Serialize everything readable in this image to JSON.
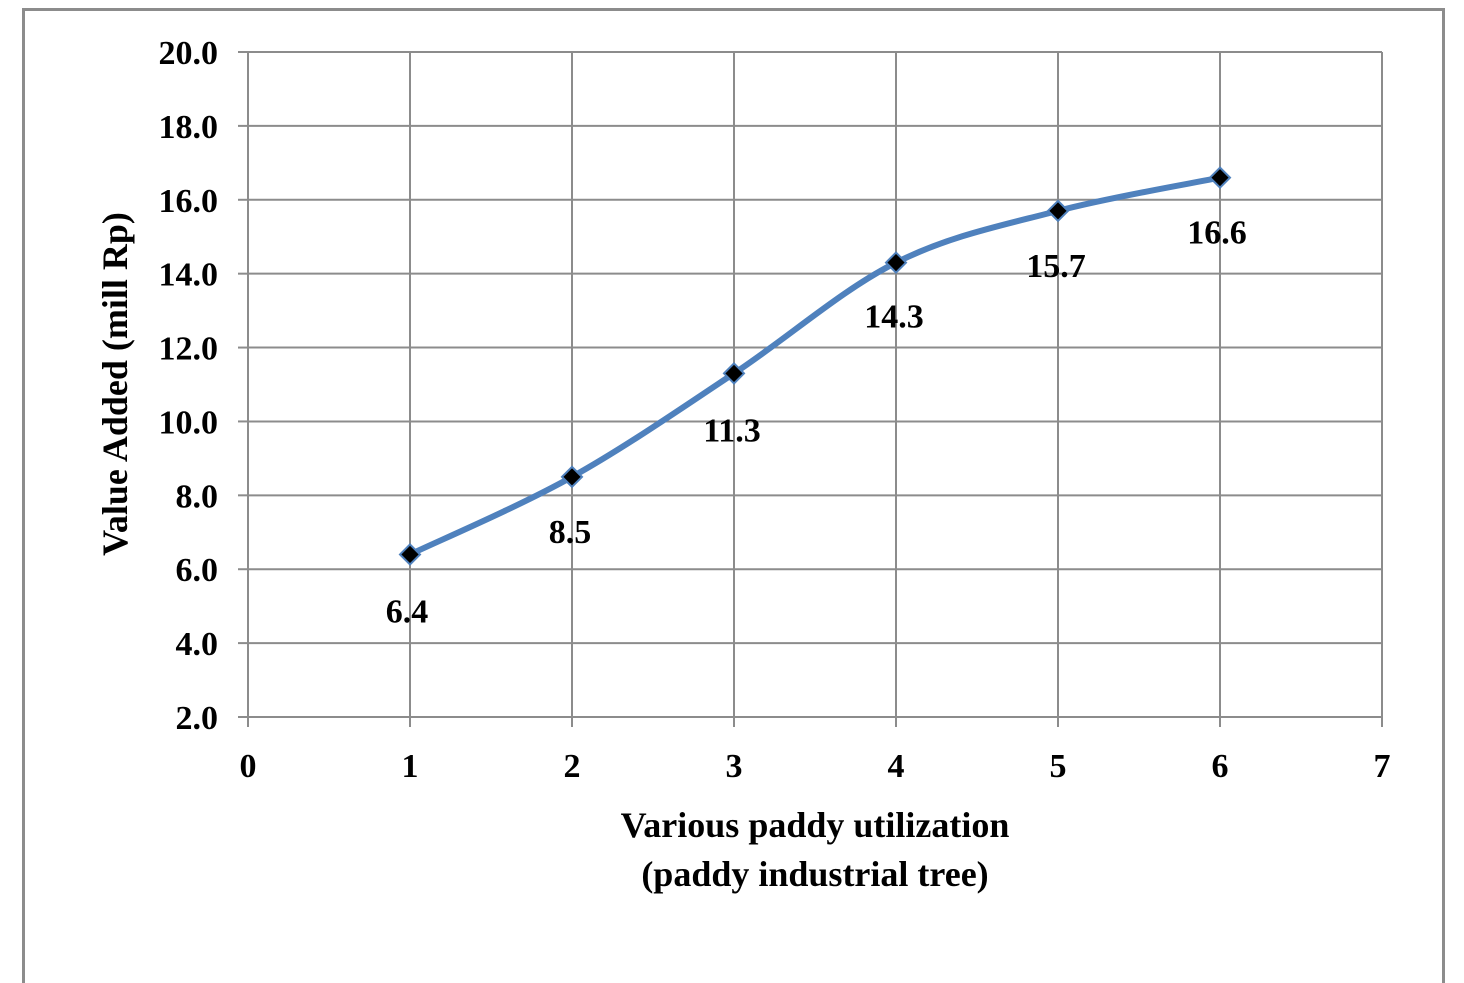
{
  "chart_data": {
    "type": "line",
    "x": [
      1,
      2,
      3,
      4,
      5,
      6
    ],
    "series": [
      {
        "values": [
          6.4,
          8.5,
          11.3,
          14.3,
          15.7,
          16.6
        ],
        "data_labels": [
          "6.4",
          "8.5",
          "11.3",
          "14.3",
          "15.7",
          "16.6"
        ]
      }
    ],
    "xlabel_lines": [
      "Various paddy utilization",
      "(paddy industrial  tree)"
    ],
    "ylabel": "Value Added (mill  Rp)",
    "xlim": [
      0,
      7
    ],
    "ylim": [
      2.0,
      20.0
    ],
    "x_ticks": [
      "0",
      "1",
      "2",
      "3",
      "4",
      "5",
      "6",
      "7"
    ],
    "y_ticks": [
      "2.0",
      "4.0",
      "6.0",
      "8.0",
      "10.0",
      "12.0",
      "14.0",
      "16.0",
      "18.0",
      "20.0"
    ],
    "grid": true,
    "legend": false,
    "line_color": "#4f81bd",
    "marker": "diamond",
    "marker_color": "#000000",
    "smooth": true
  }
}
